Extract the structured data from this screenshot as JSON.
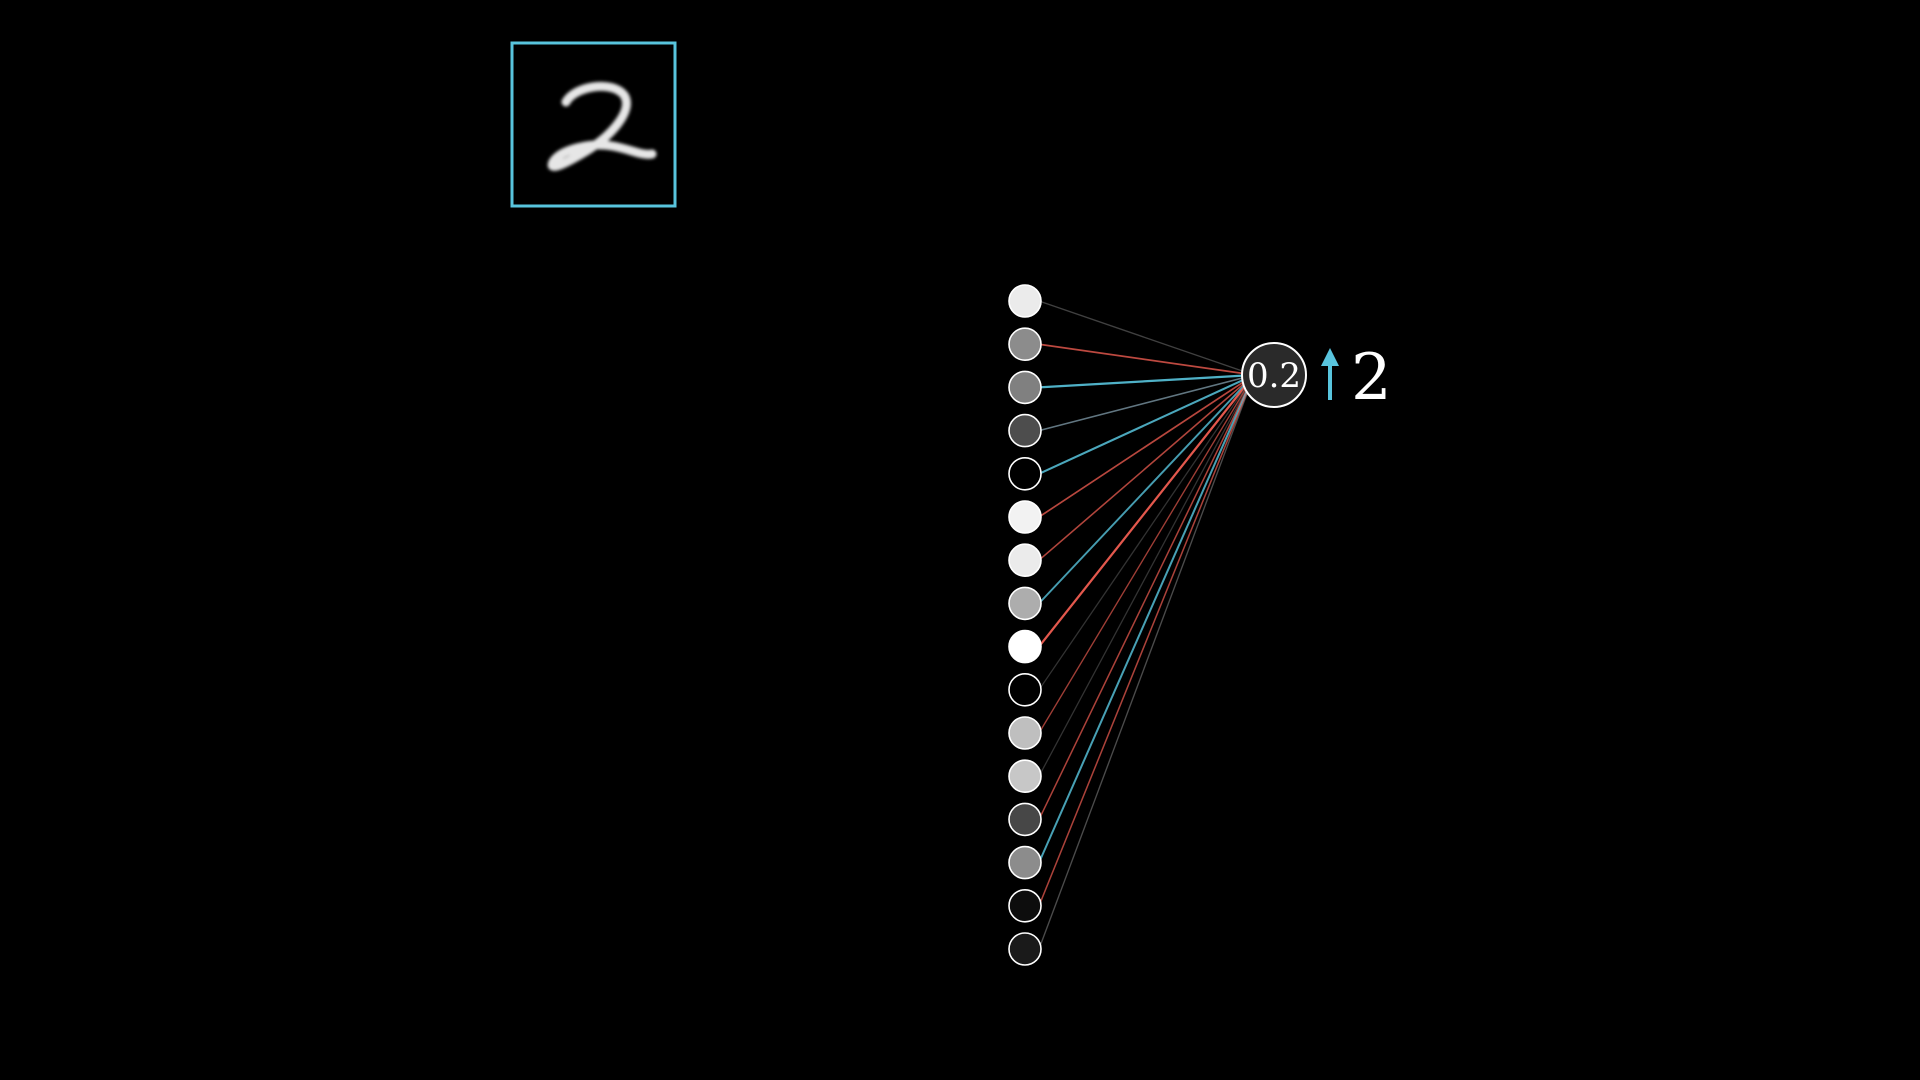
{
  "input_image": {
    "digit_shown": "2",
    "frame_color": "#58c4dd"
  },
  "input_layer": {
    "activations": [
      0.92,
      0.55,
      0.5,
      0.3,
      0.0,
      0.95,
      0.92,
      0.68,
      1.0,
      0.0,
      0.75,
      0.78,
      0.28,
      0.55,
      0.05,
      0.1
    ],
    "connection_colors": [
      "#666666",
      "#fc6255",
      "#58c4dd",
      "#8aa8b8",
      "#58c4dd",
      "#fc6255",
      "#fc6255",
      "#58c4dd",
      "#fc6255",
      "#555555",
      "#fc6255",
      "#555555",
      "#fc6255",
      "#58c4dd",
      "#fc6255",
      "#777777"
    ],
    "connection_strengths": [
      0.35,
      0.6,
      0.9,
      0.5,
      0.8,
      0.55,
      0.5,
      0.7,
      0.9,
      0.3,
      0.35,
      0.3,
      0.45,
      0.75,
      0.45,
      0.35
    ]
  },
  "output_neuron": {
    "value": "0.2",
    "fill_color": "#2a2a2a"
  },
  "indicator": {
    "arrow_icon": "up-arrow-icon",
    "arrow_color": "#58c4dd",
    "label": "2"
  }
}
